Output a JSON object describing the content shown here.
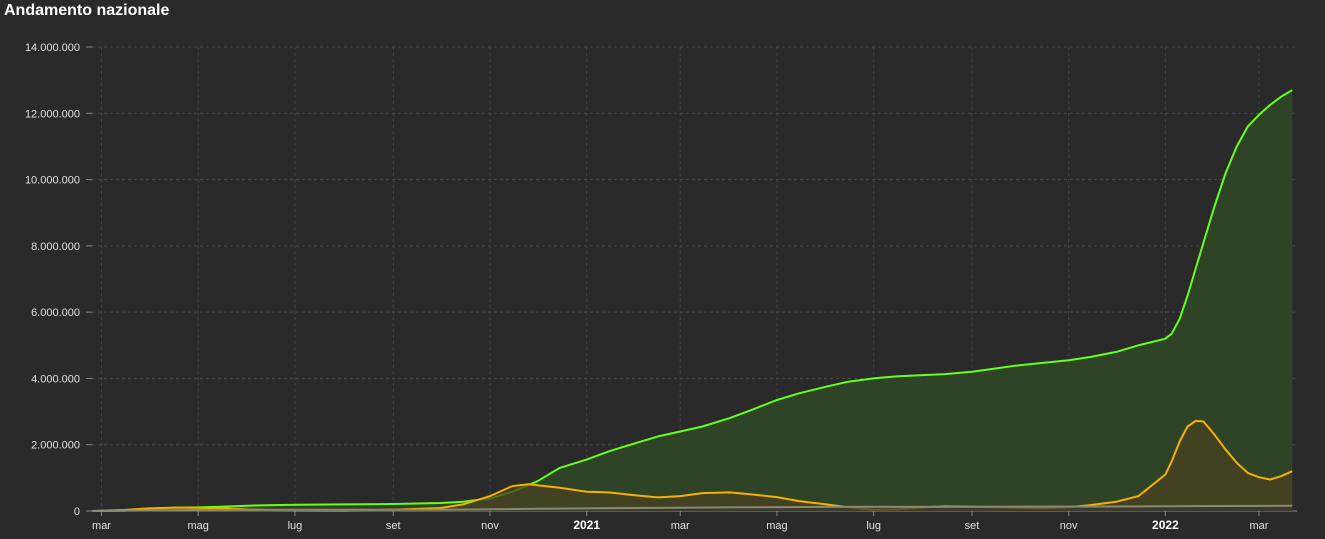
{
  "chart_data": {
    "type": "area",
    "title": "Andamento nazionale",
    "ylim": [
      0,
      14000000
    ],
    "yticks": [
      {
        "value": 0,
        "label": "0"
      },
      {
        "value": 2000000,
        "label": "2.000.000"
      },
      {
        "value": 4000000,
        "label": "4.000.000"
      },
      {
        "value": 6000000,
        "label": "6.000.000"
      },
      {
        "value": 8000000,
        "label": "8.000.000"
      },
      {
        "value": 10000000,
        "label": "10.000.000"
      },
      {
        "value": 12000000,
        "label": "12.000.000"
      },
      {
        "value": 14000000,
        "label": "14.000.000"
      }
    ],
    "xlim": [
      "2020-02-24",
      "2022-03-25"
    ],
    "xticks": [
      {
        "date": "2020-03-01",
        "label": "mar",
        "major": false
      },
      {
        "date": "2020-05-01",
        "label": "mag",
        "major": false
      },
      {
        "date": "2020-07-01",
        "label": "lug",
        "major": false
      },
      {
        "date": "2020-09-01",
        "label": "set",
        "major": false
      },
      {
        "date": "2020-11-01",
        "label": "nov",
        "major": false
      },
      {
        "date": "2021-01-01",
        "label": "2021",
        "major": true
      },
      {
        "date": "2021-03-01",
        "label": "mar",
        "major": false
      },
      {
        "date": "2021-05-01",
        "label": "mag",
        "major": false
      },
      {
        "date": "2021-07-01",
        "label": "lug",
        "major": false
      },
      {
        "date": "2021-09-01",
        "label": "set",
        "major": false
      },
      {
        "date": "2021-11-01",
        "label": "nov",
        "major": false
      },
      {
        "date": "2022-01-01",
        "label": "2022",
        "major": true
      },
      {
        "date": "2022-03-01",
        "label": "mar",
        "major": false
      }
    ],
    "grid": true,
    "series": [
      {
        "color": "#66ff1a",
        "fill": "#2f4427",
        "values": [
          [
            "2020-02-24",
            0
          ],
          [
            "2020-03-15",
            10000
          ],
          [
            "2020-04-01",
            50000
          ],
          [
            "2020-04-15",
            100000
          ],
          [
            "2020-05-01",
            110000
          ],
          [
            "2020-05-15",
            130000
          ],
          [
            "2020-06-01",
            160000
          ],
          [
            "2020-07-01",
            190000
          ],
          [
            "2020-08-01",
            200000
          ],
          [
            "2020-09-01",
            210000
          ],
          [
            "2020-10-01",
            240000
          ],
          [
            "2020-10-15",
            280000
          ],
          [
            "2020-11-01",
            380000
          ],
          [
            "2020-11-15",
            580000
          ],
          [
            "2020-12-01",
            900000
          ],
          [
            "2020-12-15",
            1300000
          ],
          [
            "2021-01-01",
            1550000
          ],
          [
            "2021-01-15",
            1800000
          ],
          [
            "2021-02-01",
            2050000
          ],
          [
            "2021-02-15",
            2250000
          ],
          [
            "2021-03-01",
            2400000
          ],
          [
            "2021-03-15",
            2550000
          ],
          [
            "2021-04-01",
            2800000
          ],
          [
            "2021-04-15",
            3050000
          ],
          [
            "2021-05-01",
            3350000
          ],
          [
            "2021-05-15",
            3550000
          ],
          [
            "2021-06-01",
            3750000
          ],
          [
            "2021-06-15",
            3900000
          ],
          [
            "2021-07-01",
            4000000
          ],
          [
            "2021-07-15",
            4060000
          ],
          [
            "2021-08-01",
            4100000
          ],
          [
            "2021-08-15",
            4130000
          ],
          [
            "2021-09-01",
            4200000
          ],
          [
            "2021-10-01",
            4400000
          ],
          [
            "2021-11-01",
            4550000
          ],
          [
            "2021-11-15",
            4650000
          ],
          [
            "2021-12-01",
            4800000
          ],
          [
            "2021-12-15",
            5000000
          ],
          [
            "2022-01-01",
            5200000
          ],
          [
            "2022-01-05",
            5350000
          ],
          [
            "2022-01-10",
            5800000
          ],
          [
            "2022-01-15",
            6500000
          ],
          [
            "2022-01-20",
            7300000
          ],
          [
            "2022-01-25",
            8100000
          ],
          [
            "2022-02-01",
            9200000
          ],
          [
            "2022-02-08",
            10200000
          ],
          [
            "2022-02-15",
            11000000
          ],
          [
            "2022-02-22",
            11600000
          ],
          [
            "2022-03-01",
            11950000
          ],
          [
            "2022-03-08",
            12250000
          ],
          [
            "2022-03-15",
            12500000
          ],
          [
            "2022-03-22",
            12700000
          ]
        ]
      },
      {
        "color": "#f5b000",
        "fill": "#4a4020",
        "values": [
          [
            "2020-02-24",
            0
          ],
          [
            "2020-03-15",
            30000
          ],
          [
            "2020-04-01",
            80000
          ],
          [
            "2020-04-20",
            105000
          ],
          [
            "2020-05-15",
            80000
          ],
          [
            "2020-06-01",
            45000
          ],
          [
            "2020-07-01",
            15000
          ],
          [
            "2020-08-01",
            13000
          ],
          [
            "2020-09-01",
            40000
          ],
          [
            "2020-10-01",
            90000
          ],
          [
            "2020-10-15",
            200000
          ],
          [
            "2020-11-01",
            450000
          ],
          [
            "2020-11-15",
            750000
          ],
          [
            "2020-11-25",
            805000
          ],
          [
            "2020-12-15",
            700000
          ],
          [
            "2021-01-01",
            580000
          ],
          [
            "2021-01-15",
            560000
          ],
          [
            "2021-02-01",
            470000
          ],
          [
            "2021-02-15",
            410000
          ],
          [
            "2021-03-01",
            450000
          ],
          [
            "2021-03-15",
            540000
          ],
          [
            "2021-04-01",
            560000
          ],
          [
            "2021-04-15",
            500000
          ],
          [
            "2021-05-01",
            420000
          ],
          [
            "2021-05-15",
            300000
          ],
          [
            "2021-06-01",
            200000
          ],
          [
            "2021-06-15",
            110000
          ],
          [
            "2021-07-01",
            40000
          ],
          [
            "2021-07-15",
            45000
          ],
          [
            "2021-08-01",
            110000
          ],
          [
            "2021-08-15",
            140000
          ],
          [
            "2021-09-01",
            130000
          ],
          [
            "2021-10-01",
            95000
          ],
          [
            "2021-10-15",
            80000
          ],
          [
            "2021-11-01",
            110000
          ],
          [
            "2021-11-15",
            180000
          ],
          [
            "2021-12-01",
            280000
          ],
          [
            "2021-12-15",
            450000
          ],
          [
            "2022-01-01",
            1100000
          ],
          [
            "2022-01-05",
            1500000
          ],
          [
            "2022-01-10",
            2100000
          ],
          [
            "2022-01-15",
            2550000
          ],
          [
            "2022-01-20",
            2720000
          ],
          [
            "2022-01-25",
            2700000
          ],
          [
            "2022-02-01",
            2300000
          ],
          [
            "2022-02-08",
            1850000
          ],
          [
            "2022-02-15",
            1450000
          ],
          [
            "2022-02-22",
            1150000
          ],
          [
            "2022-03-01",
            1020000
          ],
          [
            "2022-03-08",
            950000
          ],
          [
            "2022-03-15",
            1050000
          ],
          [
            "2022-03-22",
            1200000
          ]
        ]
      },
      {
        "color": "#8a8a72",
        "fill": "#3a3a32",
        "values": [
          [
            "2020-02-24",
            0
          ],
          [
            "2020-05-01",
            30000
          ],
          [
            "2020-07-01",
            35000
          ],
          [
            "2020-10-01",
            40000
          ],
          [
            "2020-12-01",
            65000
          ],
          [
            "2021-02-01",
            90000
          ],
          [
            "2021-04-01",
            110000
          ],
          [
            "2021-06-01",
            125000
          ],
          [
            "2021-09-01",
            130000
          ],
          [
            "2021-12-01",
            135000
          ],
          [
            "2022-02-01",
            150000
          ],
          [
            "2022-03-22",
            158000
          ]
        ]
      }
    ]
  }
}
